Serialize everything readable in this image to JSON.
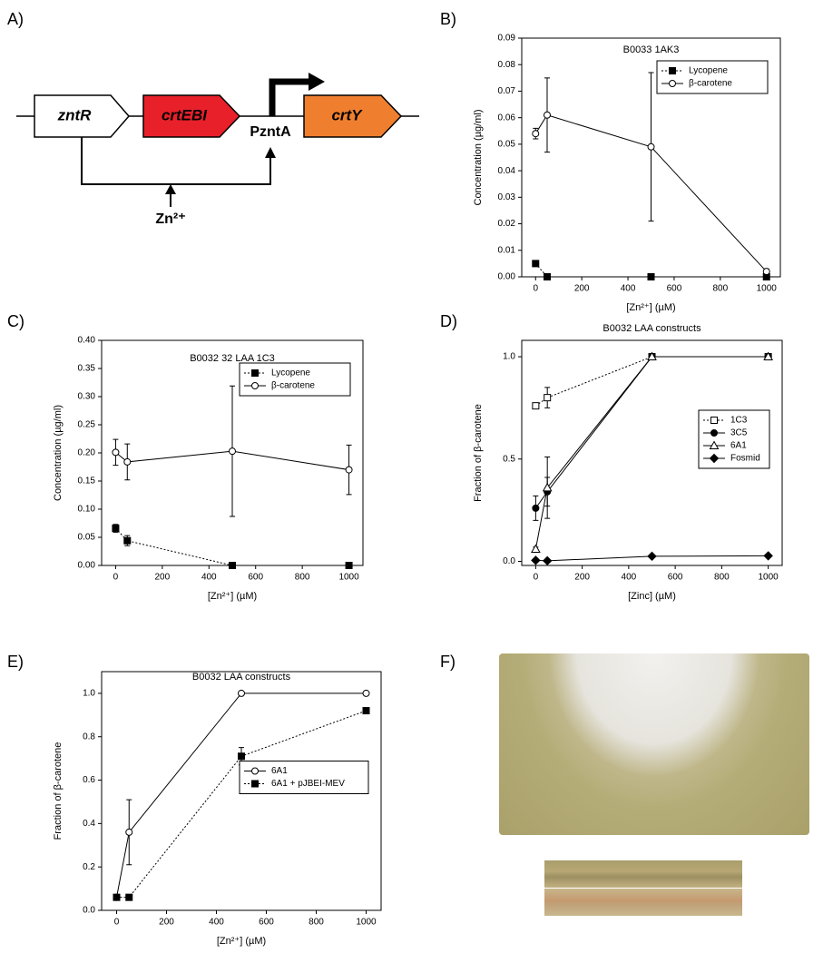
{
  "panel_labels": [
    "A)",
    "B)",
    "C)",
    "D)",
    "E)",
    "F)"
  ],
  "diagram": {
    "genes": [
      "zntR",
      "crtEBI",
      "crtY"
    ],
    "promoter": "PzntA",
    "inducer": "Zn²⁺"
  },
  "chart_data": [
    {
      "type": "line",
      "title": "B0033 1AK3",
      "x_label": "[Zn²⁺] (µM)",
      "y_label": "Concentration (µg/ml)",
      "x": [
        0,
        50,
        500,
        1000
      ],
      "xlim": [
        -60,
        1060
      ],
      "xticks": [
        0,
        200,
        400,
        600,
        800,
        1000
      ],
      "ylim": [
        0,
        0.09
      ],
      "yticks": [
        {
          "value": 0,
          "label": "0.00"
        },
        {
          "value": 0.01,
          "label": "0.01"
        },
        {
          "value": 0.02,
          "label": "0.02"
        },
        {
          "value": 0.03,
          "label": "0.03"
        },
        {
          "value": 0.04,
          "label": "0.04"
        },
        {
          "value": 0.05,
          "label": "0.05"
        },
        {
          "value": 0.06,
          "label": "0.06"
        },
        {
          "value": 0.07,
          "label": "0.07"
        },
        {
          "value": 0.08,
          "label": "0.08"
        },
        {
          "value": 0.09,
          "label": "0.09"
        }
      ],
      "legend": "upper right",
      "series": [
        {
          "name": "Lycopene",
          "color": "#000000",
          "marker": "square-filled",
          "line_style": "dotted",
          "values": [
            0.005,
            0,
            0,
            0
          ],
          "errors": [
            null,
            null,
            null,
            null
          ]
        },
        {
          "name": "β-carotene",
          "color": "#000000",
          "marker": "circle-open",
          "line_style": "solid",
          "values": [
            0.054,
            0.061,
            0.049,
            0.002
          ],
          "errors": [
            0.002,
            0.014,
            0.028,
            0.001
          ]
        }
      ]
    },
    {
      "type": "line",
      "title": "B0032 32 LAA 1C3",
      "x_label": "[Zn²⁺] (µM)",
      "y_label": "Concentration (µg/ml)",
      "x": [
        0,
        50,
        500,
        1000
      ],
      "xlim": [
        -60,
        1060
      ],
      "xticks": [
        0,
        200,
        400,
        600,
        800,
        1000
      ],
      "ylim": [
        0,
        0.4
      ],
      "yticks": [
        {
          "value": 0,
          "label": "0.00"
        },
        {
          "value": 0.05,
          "label": "0.05"
        },
        {
          "value": 0.1,
          "label": "0.10"
        },
        {
          "value": 0.15,
          "label": "0.15"
        },
        {
          "value": 0.2,
          "label": "0.20"
        },
        {
          "value": 0.25,
          "label": "0.25"
        },
        {
          "value": 0.3,
          "label": "0.30"
        },
        {
          "value": 0.35,
          "label": "0.35"
        },
        {
          "value": 0.4,
          "label": "0.40"
        }
      ],
      "legend": "upper right",
      "series": [
        {
          "name": "Lycopene",
          "color": "#000000",
          "marker": "square-filled",
          "line_style": "dotted",
          "values": [
            0.066,
            0.044,
            0,
            0
          ],
          "errors": [
            0.007,
            0.009,
            null,
            null
          ]
        },
        {
          "name": "β-carotene",
          "color": "#000000",
          "marker": "circle-open",
          "line_style": "solid",
          "values": [
            0.201,
            0.184,
            0.203,
            0.17
          ],
          "errors": [
            0.023,
            0.032,
            0.116,
            0.044
          ]
        }
      ]
    },
    {
      "type": "line",
      "title": "B0032 LAA constructs",
      "x_label": "[Zinc] (µM)",
      "y_label": "Fraction of β-carotene",
      "x": [
        0,
        50,
        500,
        1000
      ],
      "xlim": [
        -60,
        1060
      ],
      "xticks": [
        0,
        200,
        400,
        600,
        800,
        1000
      ],
      "ylim": [
        -0.02,
        1.08
      ],
      "yticks": [
        {
          "value": 0,
          "label": "0.0"
        },
        {
          "value": 0.5,
          "label": "0.5"
        },
        {
          "value": 1,
          "label": "1.0"
        }
      ],
      "legend": "center right",
      "series": [
        {
          "name": "1C3",
          "color": "#000000",
          "marker": "square-open",
          "line_style": "dotted",
          "values": [
            0.76,
            0.8,
            1,
            1
          ],
          "errors": [
            null,
            0.05,
            null,
            null
          ]
        },
        {
          "name": "3C5",
          "color": "#000000",
          "marker": "circle-filled",
          "line_style": "solid",
          "values": [
            0.26,
            0.34,
            1,
            1
          ],
          "errors": [
            0.06,
            0.07,
            null,
            null
          ]
        },
        {
          "name": "6A1",
          "color": "#000000",
          "marker": "triangle-open",
          "line_style": "solid",
          "values": [
            0.06,
            0.36,
            1,
            1
          ],
          "errors": [
            0.01,
            0.15,
            null,
            null
          ]
        },
        {
          "name": "Fosmid",
          "color": "#000000",
          "marker": "diamond-filled",
          "line_style": "solid",
          "values": [
            0.005,
            0.003,
            0.025,
            0.027
          ],
          "errors": [
            null,
            null,
            null,
            null
          ]
        }
      ]
    },
    {
      "type": "line",
      "title": "B0032 LAA constructs",
      "x_label": "[Zn²⁺] (µM)",
      "y_label": "Fraction of β-carotene",
      "x": [
        0,
        50,
        500,
        1000
      ],
      "xlim": [
        -60,
        1060
      ],
      "xticks": [
        0,
        200,
        400,
        600,
        800,
        1000
      ],
      "ylim": [
        0,
        1.1
      ],
      "yticks": [
        {
          "value": 0,
          "label": "0.0"
        },
        {
          "value": 0.2,
          "label": "0.2"
        },
        {
          "value": 0.4,
          "label": "0.4"
        },
        {
          "value": 0.6,
          "label": "0.6"
        },
        {
          "value": 0.8,
          "label": "0.8"
        },
        {
          "value": 1,
          "label": "1.0"
        }
      ],
      "legend": "center right",
      "series": [
        {
          "name": "6A1",
          "color": "#000000",
          "marker": "circle-open",
          "line_style": "solid",
          "values": [
            0.06,
            0.36,
            1,
            1
          ],
          "errors": [
            0.01,
            0.15,
            null,
            null
          ]
        },
        {
          "name": "6A1 + pJBEI-MEV",
          "color": "#000000",
          "marker": "square-filled",
          "line_style": "dotted",
          "values": [
            0.06,
            0.06,
            0.71,
            0.92
          ],
          "errors": [
            0.01,
            null,
            0.04,
            0.01
          ]
        }
      ]
    }
  ]
}
